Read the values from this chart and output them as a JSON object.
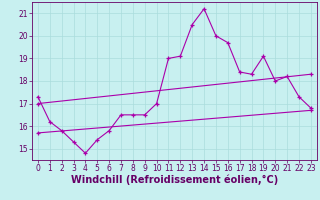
{
  "title": "",
  "xlabel": "Windchill (Refroidissement éolien,°C)",
  "ylabel": "",
  "bg_color": "#c8f0f0",
  "line_color": "#aa00aa",
  "grid_color": "#aadddd",
  "spine_color": "#660066",
  "xlim": [
    -0.5,
    23.5
  ],
  "ylim": [
    14.5,
    21.5
  ],
  "xticks": [
    0,
    1,
    2,
    3,
    4,
    5,
    6,
    7,
    8,
    9,
    10,
    11,
    12,
    13,
    14,
    15,
    16,
    17,
    18,
    19,
    20,
    21,
    22,
    23
  ],
  "yticks": [
    15,
    16,
    17,
    18,
    19,
    20,
    21
  ],
  "line1_x": [
    0,
    1,
    2,
    3,
    4,
    5,
    6,
    7,
    8,
    9,
    10,
    11,
    12,
    13,
    14,
    15,
    16,
    17,
    18,
    19,
    20,
    21,
    22,
    23
  ],
  "line1_y": [
    17.3,
    16.2,
    15.8,
    15.3,
    14.8,
    15.4,
    15.8,
    16.5,
    16.5,
    16.5,
    17.0,
    19.0,
    19.1,
    20.5,
    21.2,
    20.0,
    19.7,
    18.4,
    18.3,
    19.1,
    18.0,
    18.2,
    17.3,
    16.8
  ],
  "line2_x": [
    0,
    23
  ],
  "line2_y": [
    17.0,
    18.3
  ],
  "line3_x": [
    0,
    23
  ],
  "line3_y": [
    15.7,
    16.7
  ],
  "font_color": "#660066",
  "tick_fontsize": 5.5,
  "label_fontsize": 7.0
}
